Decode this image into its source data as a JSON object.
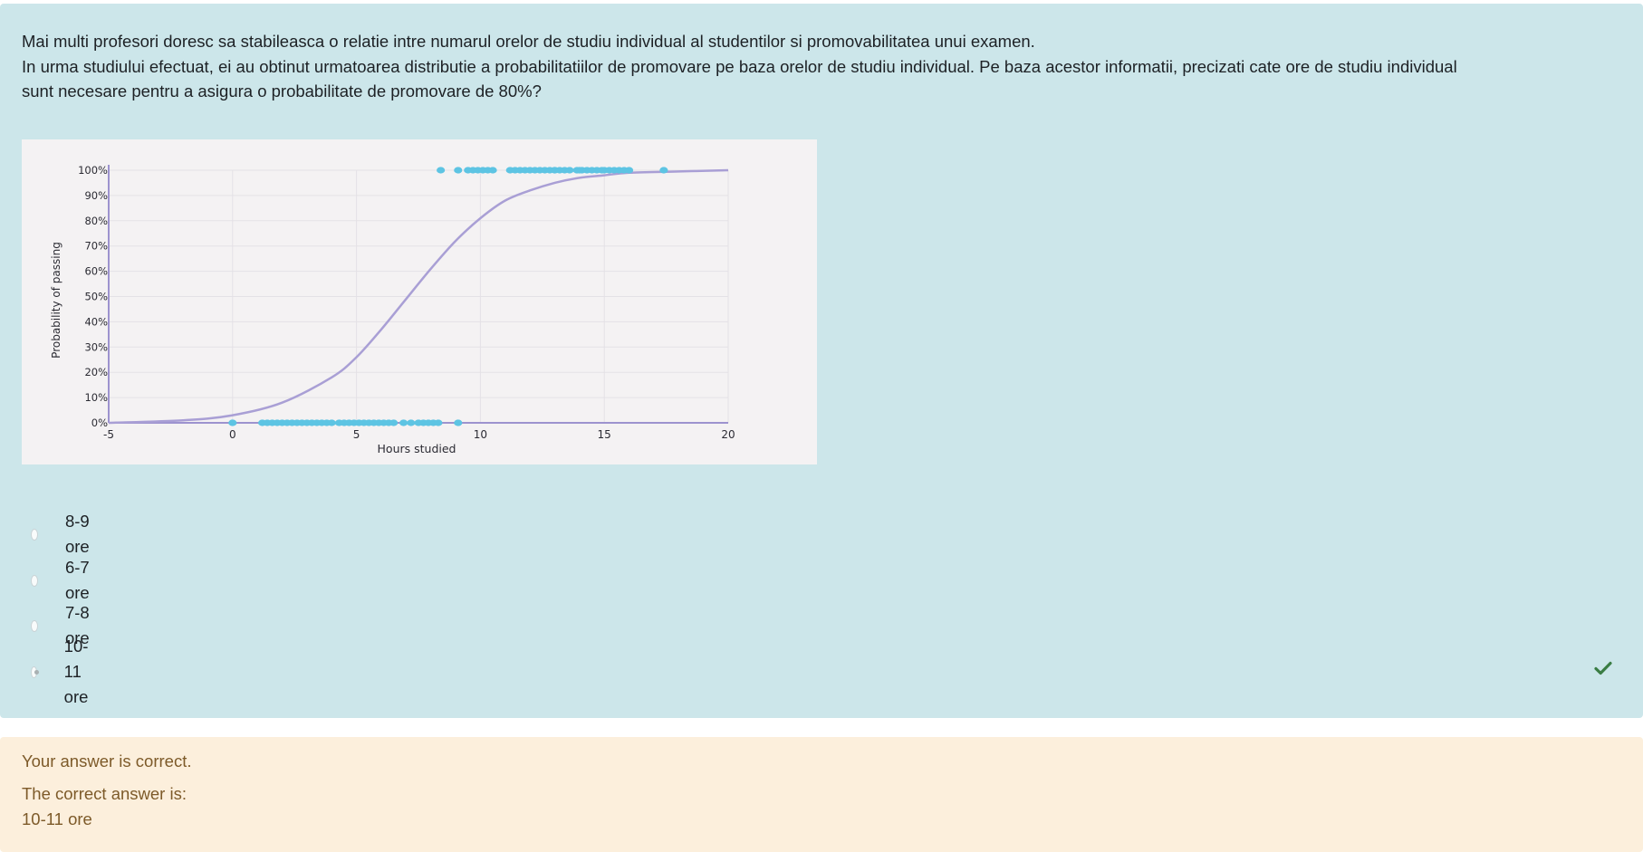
{
  "question": {
    "lines": [
      "Mai multi profesori doresc sa stabileasca o relatie intre numarul orelor de studiu individual al studentilor si promovabilitatea unui examen.",
      "In urma studiului efectuat, ei au obtinut urmatoarea distributie a probabilitatiilor de promovare pe baza orelor de studiu individual. Pe baza acestor informatii, precizati cate ore de studiu individual sunt necesare pentru a asigura o probabilitate de promovare de 80%?"
    ]
  },
  "chart_data": {
    "type": "scatter",
    "title": "",
    "xlabel": "Hours studied",
    "ylabel": "Probability of passing",
    "xlim": [
      -5,
      20
    ],
    "ylim": [
      0,
      100
    ],
    "x_ticks": [
      "-5",
      "0",
      "5",
      "10",
      "15",
      "20"
    ],
    "y_ticks": [
      "0%",
      "10%",
      "20%",
      "30%",
      "40%",
      "50%",
      "60%",
      "70%",
      "80%",
      "90%",
      "100%"
    ],
    "grid": true,
    "curve": {
      "type": "logistic",
      "x": [
        -5,
        -2,
        0,
        2,
        4,
        5,
        6,
        7,
        8,
        9,
        10,
        11,
        12,
        13,
        14,
        15,
        16,
        18,
        20
      ],
      "y": [
        0,
        1,
        3,
        8,
        18,
        26,
        37,
        49,
        61,
        72,
        81,
        88,
        92,
        95,
        97,
        98,
        99,
        99.5,
        100
      ]
    },
    "series": [
      {
        "name": "",
        "x": [
          13,
          14,
          15
        ],
        "y": [
          100,
          100,
          100
        ]
      },
      {
        "name": "",
        "x": [
          0,
          1.2,
          1.4,
          1.6,
          1.8,
          2.0,
          2.2,
          2.4,
          2.6,
          2.8,
          3.0,
          3.2,
          3.4,
          3.6,
          3.8,
          4.0,
          4.3,
          4.5,
          4.7,
          4.9,
          5.1,
          5.3,
          5.5,
          5.7,
          5.9,
          6.1,
          6.3,
          6.5,
          6.9,
          7.2,
          7.5,
          7.7,
          7.9,
          8.1,
          8.3,
          9.1
        ],
        "y": [
          0,
          0,
          0,
          0,
          0,
          0,
          0,
          0,
          0,
          0,
          0,
          0,
          0,
          0,
          0,
          0,
          0,
          0,
          0,
          0,
          0,
          0,
          0,
          0,
          0,
          0,
          0,
          0,
          0,
          0,
          0,
          0,
          0,
          0,
          0,
          0
        ]
      },
      {
        "name": "",
        "x": [
          8.4,
          9.1,
          9.5,
          9.7,
          9.9,
          10.1,
          10.3,
          10.5,
          11.2,
          11.4,
          11.6,
          11.8,
          12.0,
          12.2,
          12.4,
          12.6,
          12.8,
          13.0,
          13.2,
          13.4,
          13.6,
          13.9,
          14.1,
          14.3,
          14.5,
          14.7,
          14.9,
          15.2,
          15.4,
          15.6,
          15.8,
          16.0,
          17.4
        ],
        "y": [
          100,
          100,
          100,
          100,
          100,
          100,
          100,
          100,
          100,
          100,
          100,
          100,
          100,
          100,
          100,
          100,
          100,
          100,
          100,
          100,
          100,
          100,
          100,
          100,
          100,
          100,
          100,
          100,
          100,
          100,
          100,
          100,
          100
        ]
      }
    ],
    "colors": {
      "curve": "#a99fd5",
      "points": "#5dc4e3",
      "axis": "#9d93cf",
      "grid": "#e4e1e6"
    }
  },
  "answers": [
    {
      "label": "8-9 ore",
      "checked": false
    },
    {
      "label": "6-7 ore",
      "checked": false
    },
    {
      "label": "7-8 ore",
      "checked": false
    },
    {
      "label": "10-11 ore",
      "checked": true
    }
  ],
  "feedback": {
    "result": "Your answer is correct.",
    "correct_label": "The correct answer is:",
    "correct_value": "10-11 ore"
  },
  "colors": {
    "question_bg": "#cce6ea",
    "feedback_bg": "#fcefdc",
    "feedback_text": "#7d5a29",
    "check": "#3a7d44"
  }
}
